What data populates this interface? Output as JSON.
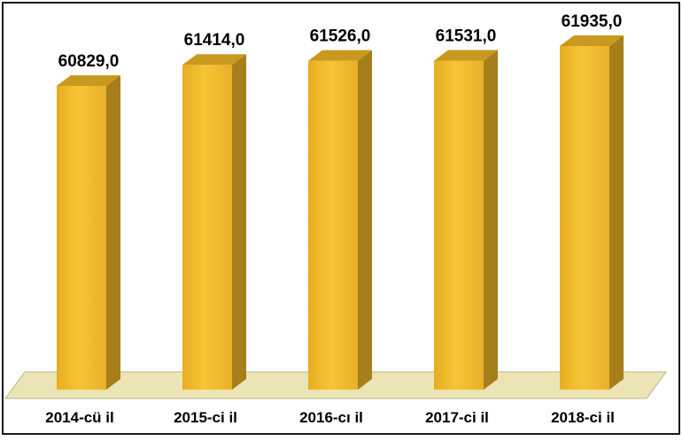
{
  "chart_data": {
    "type": "bar",
    "style": "3d",
    "categories": [
      "2014-cü il",
      "2015-ci il",
      "2016-cı il",
      "2017-ci il",
      "2018-ci il"
    ],
    "values": [
      60829.0,
      61414.0,
      61526.0,
      61531.0,
      61935.0
    ],
    "value_labels": [
      "60829,0",
      "61414,0",
      "61526,0",
      "61531,0",
      "61935,0"
    ],
    "grid": false,
    "legend": "none"
  },
  "colors": {
    "bar_front": "#f3bc2e",
    "bar_side": "#a67e1a",
    "bar_top": "#c9981f",
    "floor": "#ece4b4",
    "frame_border": "#1a1a1a"
  }
}
